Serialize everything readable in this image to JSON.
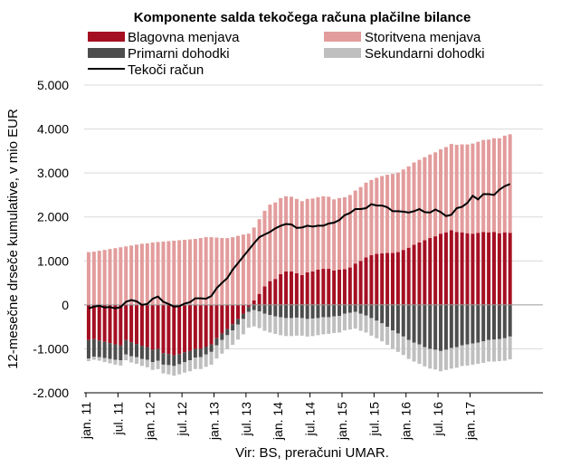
{
  "chart_data": {
    "type": "bar",
    "title": "Komponente salda tekočega računa plačilne bilance",
    "ylabel": "12-mesečne drseče kumulative, v mio EUR",
    "xlabel": "",
    "source": "Vir: BS, preračuni UMAR.",
    "ylim": [
      -2000,
      5000
    ],
    "y_ticks": [
      "-2.000",
      "-1.000",
      "0",
      "1.000",
      "2.000",
      "3.000",
      "4.000",
      "5.000"
    ],
    "x_ticks": [
      "jan. 11",
      "jul. 11",
      "jan. 12",
      "jul. 12",
      "jan. 13",
      "jul. 13",
      "jan. 14",
      "jul. 14",
      "jan. 15",
      "jul. 15",
      "jan. 16",
      "jul. 16",
      "jan. 17"
    ],
    "stacked": true,
    "colors": {
      "Blagovna menjava": "#a50f22",
      "Storitvena menjava": "#e39c9c",
      "Primarni dohodki": "#4d4d4d",
      "Sekundarni dohodki": "#bfbfbf",
      "Tekoči račun": "#000000"
    },
    "legend": [
      "Blagovna menjava",
      "Storitvena menjava",
      "Primarni dohodki",
      "Sekundarni dohodki",
      "Tekoči račun"
    ],
    "series": [
      {
        "name": "Blagovna menjava",
        "kind": "bar",
        "values": [
          -800,
          -780,
          -810,
          -840,
          -870,
          -900,
          -920,
          -800,
          -850,
          -890,
          -930,
          -960,
          -1020,
          -1000,
          -1100,
          -1120,
          -1150,
          -1120,
          -1080,
          -1050,
          -1000,
          -1000,
          -950,
          -900,
          -760,
          -650,
          -550,
          -440,
          -320,
          -200,
          -50,
          100,
          250,
          420,
          540,
          590,
          700,
          760,
          760,
          720,
          680,
          740,
          760,
          800,
          820,
          820,
          780,
          800,
          810,
          850,
          940,
          1000,
          1080,
          1130,
          1160,
          1170,
          1180,
          1180,
          1200,
          1250,
          1300,
          1370,
          1420,
          1470,
          1520,
          1560,
          1620,
          1650,
          1700,
          1660,
          1650,
          1630,
          1620,
          1640,
          1660,
          1650,
          1660,
          1630,
          1650,
          1640
        ]
      },
      {
        "name": "Storitvena menjava",
        "kind": "bar",
        "values": [
          1200,
          1210,
          1230,
          1250,
          1270,
          1290,
          1310,
          1330,
          1350,
          1370,
          1390,
          1400,
          1420,
          1430,
          1440,
          1450,
          1460,
          1470,
          1480,
          1490,
          1500,
          1520,
          1540,
          1540,
          1530,
          1520,
          1520,
          1540,
          1570,
          1600,
          1620,
          1660,
          1700,
          1720,
          1740,
          1740,
          1730,
          1710,
          1700,
          1690,
          1680,
          1670,
          1660,
          1650,
          1650,
          1640,
          1620,
          1630,
          1640,
          1650,
          1660,
          1680,
          1700,
          1710,
          1730,
          1760,
          1780,
          1800,
          1810,
          1830,
          1850,
          1870,
          1880,
          1890,
          1900,
          1910,
          1920,
          1940,
          1960,
          1980,
          2000,
          2020,
          2050,
          2070,
          2090,
          2110,
          2130,
          2160,
          2200,
          2240
        ]
      },
      {
        "name": "Primarni dohodki",
        "kind": "bar",
        "values": [
          -420,
          -400,
          -380,
          -370,
          -360,
          -350,
          -340,
          -330,
          -320,
          -300,
          -300,
          -290,
          -280,
          -270,
          -260,
          -250,
          -240,
          -230,
          -220,
          -210,
          -200,
          -190,
          -180,
          -170,
          -160,
          -150,
          -140,
          -140,
          -130,
          -120,
          -110,
          -120,
          -150,
          -200,
          -230,
          -260,
          -280,
          -300,
          -300,
          -290,
          -300,
          -320,
          -310,
          -300,
          -280,
          -280,
          -260,
          -250,
          -200,
          -180,
          -160,
          -200,
          -240,
          -300,
          -360,
          -420,
          -500,
          -580,
          -650,
          -720,
          -800,
          -860,
          -900,
          -960,
          -1000,
          -1020,
          -1050,
          -1020,
          -980,
          -960,
          -920,
          -900,
          -880,
          -860,
          -830,
          -800,
          -790,
          -780,
          -760,
          -720
        ]
      },
      {
        "name": "Sekundarni dohodki",
        "kind": "bar",
        "values": [
          -60,
          -70,
          -80,
          -90,
          -100,
          -110,
          -120,
          -130,
          -140,
          -150,
          -160,
          -170,
          -180,
          -190,
          -200,
          -210,
          -220,
          -230,
          -240,
          -250,
          -260,
          -270,
          -280,
          -290,
          -300,
          -310,
          -320,
          -330,
          -340,
          -350,
          -360,
          -370,
          -380,
          -390,
          -400,
          -400,
          -410,
          -410,
          -410,
          -410,
          -400,
          -400,
          -400,
          -390,
          -390,
          -380,
          -380,
          -380,
          -380,
          -380,
          -380,
          -390,
          -390,
          -400,
          -400,
          -410,
          -410,
          -420,
          -420,
          -420,
          -430,
          -430,
          -440,
          -440,
          -450,
          -450,
          -460,
          -460,
          -470,
          -470,
          -470,
          -480,
          -480,
          -480,
          -490,
          -490,
          -500,
          -500,
          -510,
          -520
        ]
      },
      {
        "name": "Tekoči račun",
        "kind": "line",
        "values": [
          -80,
          -40,
          -20,
          -60,
          -50,
          -80,
          -50,
          70,
          110,
          80,
          0,
          20,
          140,
          190,
          70,
          20,
          -40,
          -30,
          30,
          60,
          150,
          150,
          140,
          200,
          380,
          500,
          610,
          800,
          950,
          1100,
          1250,
          1400,
          1540,
          1600,
          1660,
          1740,
          1800,
          1840,
          1830,
          1750,
          1760,
          1800,
          1780,
          1800,
          1800,
          1850,
          1870,
          1930,
          2040,
          2090,
          2180,
          2180,
          2200,
          2290,
          2260,
          2260,
          2220,
          2130,
          2130,
          2120,
          2100,
          2130,
          2180,
          2110,
          2100,
          2170,
          2110,
          2020,
          2050,
          2200,
          2230,
          2320,
          2480,
          2400,
          2520,
          2520,
          2500,
          2620,
          2700,
          2750
        ]
      }
    ]
  }
}
